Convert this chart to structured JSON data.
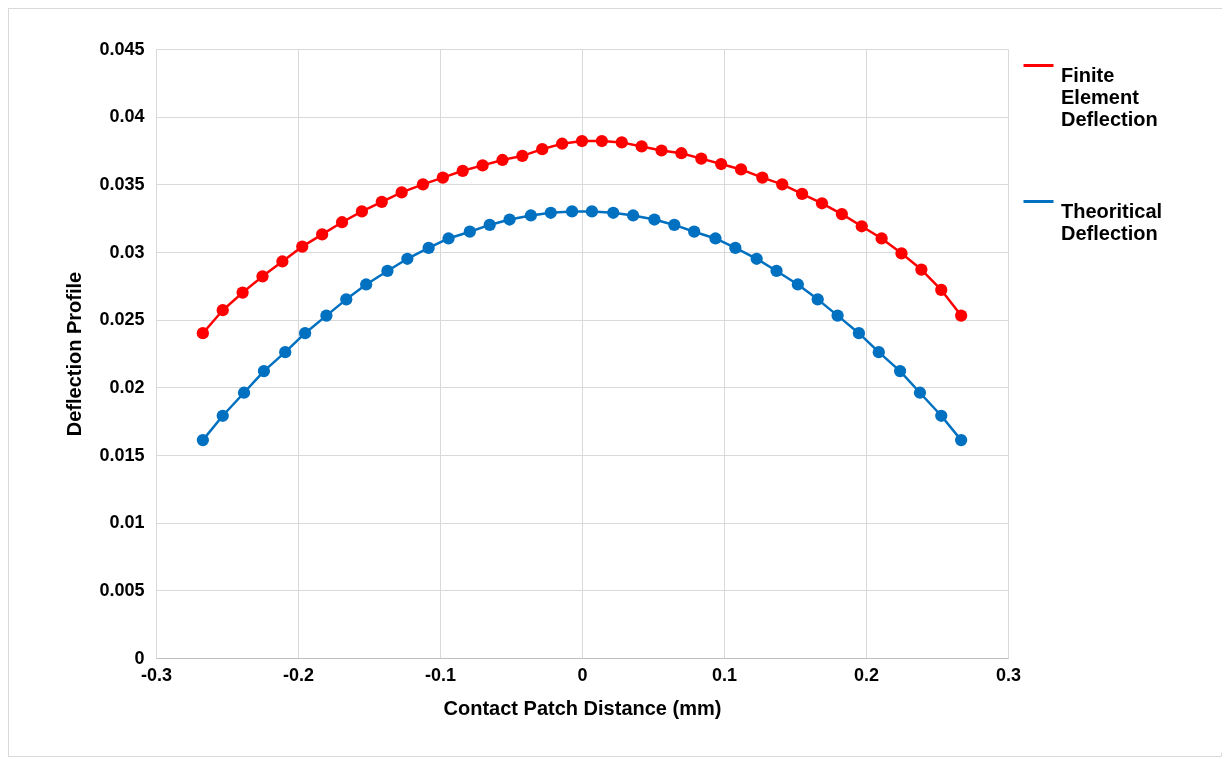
{
  "chart_data": {
    "type": "line",
    "xlabel": "Contact Patch Distance (mm)",
    "ylabel": "Deflection Profile",
    "xlim": [
      -0.3,
      0.3
    ],
    "xticks": [
      -0.3,
      -0.2,
      -0.1,
      0,
      0.1,
      0.2,
      0.3
    ],
    "ylim": [
      0,
      0.045
    ],
    "yticks": [
      0,
      0.005,
      0.01,
      0.015,
      0.02,
      0.025,
      0.03,
      0.035,
      0.04,
      0.045
    ],
    "grid": true,
    "legend": "right",
    "marker": "circle",
    "line_style": "solid",
    "series": [
      {
        "name": "Finite Element Deflection",
        "color": "#ff0000",
        "x": [
          -0.267,
          -0.253,
          -0.239,
          -0.225,
          -0.211,
          -0.197,
          -0.183,
          -0.169,
          -0.155,
          -0.141,
          -0.127,
          -0.112,
          -0.098,
          -0.084,
          -0.07,
          -0.056,
          -0.042,
          -0.028,
          -0.014,
          0,
          0.014,
          0.028,
          0.042,
          0.056,
          0.07,
          0.084,
          0.098,
          0.112,
          0.127,
          0.141,
          0.155,
          0.169,
          0.183,
          0.197,
          0.211,
          0.225,
          0.239,
          0.253,
          0.267
        ],
        "values": [
          0.024,
          0.0257,
          0.027,
          0.0282,
          0.0293,
          0.0304,
          0.0313,
          0.0322,
          0.033,
          0.0337,
          0.0344,
          0.035,
          0.0355,
          0.036,
          0.0364,
          0.0368,
          0.0371,
          0.0376,
          0.038,
          0.0382,
          0.0382,
          0.0381,
          0.0378,
          0.0375,
          0.0373,
          0.0369,
          0.0365,
          0.0361,
          0.0355,
          0.035,
          0.0343,
          0.0336,
          0.0328,
          0.0319,
          0.031,
          0.0299,
          0.0287,
          0.0272,
          0.0253
        ]
      },
      {
        "name": "Theoritical Deflection",
        "color": "#0070c0",
        "x": [
          -0.267,
          -0.253,
          -0.238,
          -0.224,
          -0.209,
          -0.195,
          -0.18,
          -0.166,
          -0.152,
          -0.137,
          -0.123,
          -0.108,
          -0.094,
          -0.079,
          -0.065,
          -0.051,
          -0.036,
          -0.022,
          -0.007,
          0.007,
          0.022,
          0.036,
          0.051,
          0.065,
          0.079,
          0.094,
          0.108,
          0.123,
          0.137,
          0.152,
          0.166,
          0.18,
          0.195,
          0.209,
          0.224,
          0.238,
          0.253,
          0.267
        ],
        "values": [
          0.0161,
          0.0179,
          0.0196,
          0.0212,
          0.0226,
          0.024,
          0.0253,
          0.0265,
          0.0276,
          0.0286,
          0.0295,
          0.0303,
          0.031,
          0.0315,
          0.032,
          0.0324,
          0.0327,
          0.0329,
          0.033,
          0.033,
          0.0329,
          0.0327,
          0.0324,
          0.032,
          0.0315,
          0.031,
          0.0303,
          0.0295,
          0.0286,
          0.0276,
          0.0265,
          0.0253,
          0.024,
          0.0226,
          0.0212,
          0.0196,
          0.0179,
          0.0161
        ]
      }
    ]
  }
}
